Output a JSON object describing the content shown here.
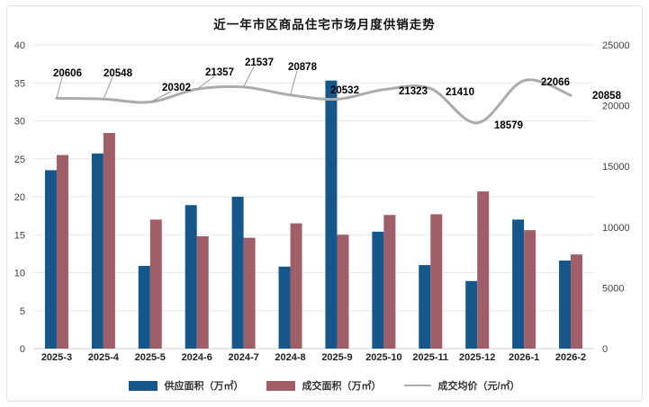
{
  "chart_data": {
    "type": "bar+line",
    "title": "近一年市区商品住宅市场月度供销走势",
    "categories": [
      "2025-3",
      "2025-4",
      "2025-5",
      "2024-6",
      "2024-7",
      "2024-8",
      "2025-9",
      "2025-10",
      "2025-11",
      "2025-12",
      "2026-1",
      "2026-2"
    ],
    "series": [
      {
        "name": "供应面积（万㎡）",
        "type": "bar",
        "axis": "left",
        "color": "#15578B",
        "values": [
          23.5,
          25.7,
          10.9,
          18.9,
          20.0,
          10.8,
          35.3,
          15.4,
          11.0,
          8.9,
          17.0,
          11.6
        ]
      },
      {
        "name": "成交面积（万㎡）",
        "type": "bar",
        "axis": "left",
        "color": "#A05E68",
        "values": [
          25.5,
          28.4,
          17.0,
          14.8,
          14.6,
          16.5,
          15.0,
          17.6,
          17.7,
          20.7,
          15.6,
          12.4
        ]
      },
      {
        "name": "成交均价（元/㎡）",
        "type": "line",
        "axis": "right",
        "color": "#ABABAB",
        "values": [
          20606,
          20548,
          20302,
          21357,
          21537,
          20878,
          20532,
          21323,
          21410,
          18579,
          22066,
          20858
        ],
        "point_labels": [
          "20606",
          "20548",
          "20302",
          "21357",
          "21537",
          "20878",
          "20532",
          "21323",
          "21410",
          "18579",
          "22066",
          "20858"
        ]
      }
    ],
    "left_axis": {
      "min": 0,
      "max": 40,
      "step": 5,
      "ticks": [
        "0",
        "5",
        "10",
        "15",
        "20",
        "25",
        "30",
        "35",
        "40"
      ]
    },
    "right_axis": {
      "min": 0,
      "max": 25000,
      "step": 5000,
      "ticks": [
        "0",
        "5000",
        "10000",
        "15000",
        "20000",
        "25000"
      ]
    },
    "grid": "horizontal",
    "legend_position": "bottom"
  }
}
